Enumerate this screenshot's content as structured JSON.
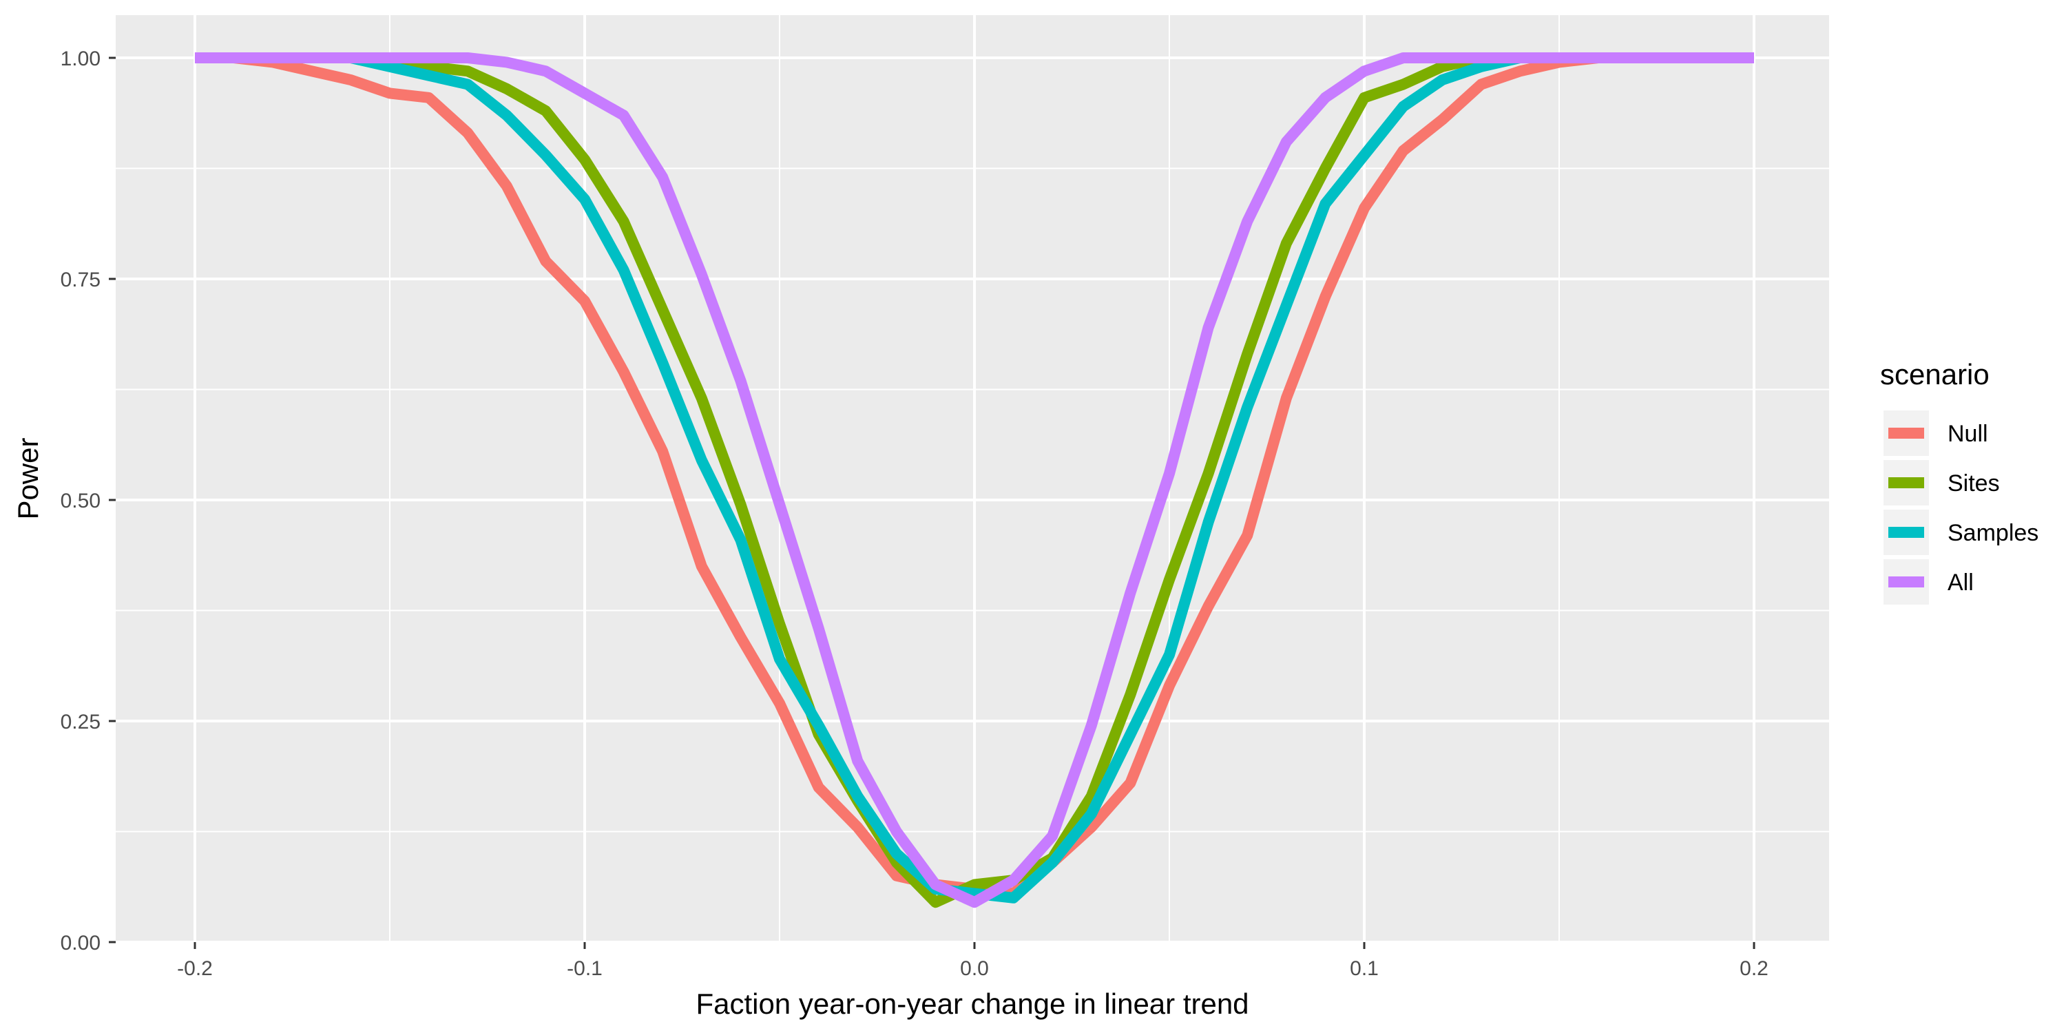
{
  "chart_data": {
    "type": "line",
    "xlabel": "Faction year-on-year change in linear trend",
    "ylabel": "Power",
    "xlim": [
      -0.22,
      0.22
    ],
    "ylim": [
      -0.0,
      1.0
    ],
    "x_ticks": [
      -0.2,
      -0.1,
      0.0,
      0.1,
      0.2
    ],
    "x_tick_labels": [
      "-0.2",
      "-0.1",
      "0.0",
      "0.1",
      "0.2"
    ],
    "y_ticks": [
      0.0,
      0.25,
      0.5,
      0.75,
      1.0
    ],
    "y_tick_labels": [
      "0.00",
      "0.25",
      "0.50",
      "0.75",
      "1.00"
    ],
    "grid": true,
    "legend": {
      "title": "scenario",
      "position": "right"
    },
    "x": [
      -0.2,
      -0.19,
      -0.18,
      -0.17,
      -0.16,
      -0.15,
      -0.14,
      -0.13,
      -0.12,
      -0.11,
      -0.1,
      -0.09,
      -0.08,
      -0.07,
      -0.06,
      -0.05,
      -0.04,
      -0.03,
      -0.02,
      -0.01,
      0.0,
      0.01,
      0.02,
      0.03,
      0.04,
      0.05,
      0.06,
      0.07,
      0.08,
      0.09,
      0.1,
      0.11,
      0.12,
      0.13,
      0.14,
      0.15,
      0.16,
      0.17,
      0.18,
      0.19,
      0.2
    ],
    "series": [
      {
        "name": "Null",
        "color": "#F8766D",
        "values": [
          1.0,
          1.0,
          0.995,
          0.985,
          0.975,
          0.96,
          0.955,
          0.915,
          0.855,
          0.77,
          0.725,
          0.645,
          0.555,
          0.425,
          0.345,
          0.27,
          0.175,
          0.13,
          0.075,
          0.065,
          0.06,
          0.055,
          0.09,
          0.13,
          0.18,
          0.29,
          0.38,
          0.46,
          0.615,
          0.73,
          0.83,
          0.895,
          0.93,
          0.97,
          0.985,
          0.995,
          1.0,
          1.0,
          1.0,
          1.0,
          1.0
        ]
      },
      {
        "name": "Sites",
        "color": "#7CAE00",
        "values": [
          1.0,
          1.0,
          1.0,
          1.0,
          1.0,
          0.995,
          0.99,
          0.985,
          0.965,
          0.94,
          0.885,
          0.815,
          0.715,
          0.615,
          0.495,
          0.36,
          0.235,
          0.16,
          0.09,
          0.045,
          0.065,
          0.07,
          0.095,
          0.165,
          0.28,
          0.41,
          0.53,
          0.665,
          0.79,
          0.875,
          0.955,
          0.97,
          0.99,
          1.0,
          1.0,
          1.0,
          1.0,
          1.0,
          1.0,
          1.0,
          1.0
        ]
      },
      {
        "name": "Samples",
        "color": "#00BFC4",
        "values": [
          1.0,
          1.0,
          1.0,
          1.0,
          1.0,
          0.99,
          0.98,
          0.97,
          0.935,
          0.89,
          0.84,
          0.76,
          0.655,
          0.545,
          0.455,
          0.32,
          0.245,
          0.165,
          0.1,
          0.06,
          0.055,
          0.05,
          0.09,
          0.145,
          0.235,
          0.325,
          0.475,
          0.605,
          0.72,
          0.835,
          0.89,
          0.945,
          0.975,
          0.99,
          1.0,
          1.0,
          1.0,
          1.0,
          1.0,
          1.0,
          1.0
        ]
      },
      {
        "name": "All",
        "color": "#C77CFF",
        "values": [
          1.0,
          1.0,
          1.0,
          1.0,
          1.0,
          1.0,
          1.0,
          1.0,
          0.995,
          0.985,
          0.96,
          0.935,
          0.865,
          0.755,
          0.635,
          0.495,
          0.355,
          0.205,
          0.125,
          0.065,
          0.045,
          0.07,
          0.12,
          0.245,
          0.395,
          0.53,
          0.695,
          0.815,
          0.905,
          0.955,
          0.985,
          1.0,
          1.0,
          1.0,
          1.0,
          1.0,
          1.0,
          1.0,
          1.0,
          1.0,
          1.0
        ]
      }
    ]
  }
}
